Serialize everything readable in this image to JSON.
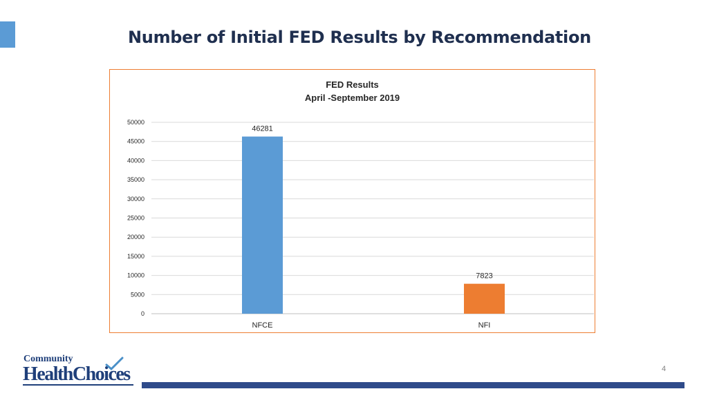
{
  "slide": {
    "title": "Number of Initial FED Results by Recommendation",
    "page_number": "4"
  },
  "logo": {
    "line1": "Community",
    "line2": "HealthChoices"
  },
  "colors": {
    "accent": "#5b9bd5",
    "frame": "#ed7d31",
    "title": "#1f2f4f",
    "bar_bottom": "#2f4b8a"
  },
  "chart_data": {
    "type": "bar",
    "title": "FED Results",
    "subtitle": "April -September 2019",
    "categories": [
      "NFCE",
      "NFI"
    ],
    "values": [
      46281,
      7823
    ],
    "data_labels": [
      "46281",
      "7823"
    ],
    "bar_colors": [
      "#5b9bd5",
      "#ed7d31"
    ],
    "ylim": [
      0,
      50000
    ],
    "yticks": [
      0,
      5000,
      10000,
      15000,
      20000,
      25000,
      30000,
      35000,
      40000,
      45000,
      50000
    ],
    "grid": true,
    "legend": "none",
    "xlabel": "",
    "ylabel": ""
  }
}
